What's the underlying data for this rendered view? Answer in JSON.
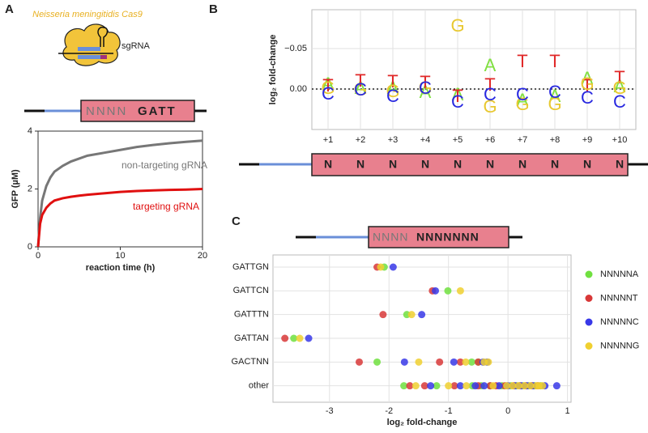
{
  "figure": {
    "panel_labels": [
      "A",
      "B",
      "C"
    ],
    "cas9_title": "Neisseria meningitidis Cas9",
    "sgrna_label": "sgRNA",
    "seq_a": {
      "variable": "NNNN",
      "fixed": "GATT"
    },
    "seq_b": [
      "N",
      "N",
      "N",
      "N",
      "N",
      "N",
      "N",
      "N",
      "N",
      "N"
    ],
    "seq_c": {
      "variable": "NNNN",
      "fixed": "NNNNNNN"
    }
  },
  "chart_data": [
    {
      "type": "line",
      "xlabel": "reaction time (h)",
      "ylabel": "GFP (µM)",
      "x": [
        0,
        0.25,
        0.5,
        1,
        1.5,
        2,
        3,
        4,
        5,
        6,
        8,
        10,
        12,
        14,
        16,
        18,
        20
      ],
      "series": [
        {
          "name": "non-targeting gRNA",
          "color": "#777777",
          "values": [
            0,
            1.0,
            1.6,
            2.1,
            2.4,
            2.6,
            2.8,
            2.95,
            3.05,
            3.15,
            3.25,
            3.35,
            3.45,
            3.52,
            3.58,
            3.63,
            3.67
          ]
        },
        {
          "name": "targeting gRNA",
          "color": "#e01010",
          "values": [
            0,
            0.8,
            1.1,
            1.35,
            1.5,
            1.6,
            1.68,
            1.73,
            1.77,
            1.8,
            1.85,
            1.9,
            1.93,
            1.95,
            1.97,
            1.98,
            2.0
          ]
        }
      ],
      "xlim": [
        0,
        20
      ],
      "ylim": [
        0,
        4
      ],
      "xticks": [
        0,
        10,
        20
      ],
      "yticks": [
        0,
        2,
        4
      ]
    },
    {
      "type": "logo",
      "ylabel": "log₂ fold-change",
      "categories": [
        "+1",
        "+2",
        "+3",
        "+4",
        "+5",
        "+6",
        "+7",
        "+8",
        "+9",
        "+10"
      ],
      "series": [
        {
          "name": "A",
          "color": "#80e040",
          "values": [
            -0.005,
            0,
            0,
            0.005,
            0.008,
            -0.028,
            0.015,
            0.01,
            -0.012,
            -0.002
          ]
        },
        {
          "name": "T",
          "color": "#e02828",
          "values": [
            -0.003,
            -0.009,
            -0.008,
            -0.007,
            0.01,
            -0.004,
            -0.033,
            -0.033,
            -0.003,
            -0.013
          ]
        },
        {
          "name": "G",
          "color": "#e8c830",
          "values": [
            0,
            0.002,
            0.004,
            0,
            -0.077,
            0.023,
            0.02,
            0.02,
            -0.005,
            0
          ]
        },
        {
          "name": "C",
          "color": "#2828e0",
          "values": [
            0.007,
            0.002,
            0.01,
            0,
            0.017,
            0.008,
            0.008,
            0.005,
            0.012,
            0.017
          ]
        }
      ],
      "ylim": [
        -0.098,
        0.05
      ],
      "inverted": true,
      "yticks": [
        {
          "value": -0.05,
          "label": "−0.05"
        },
        {
          "value": 0,
          "label": "0.00"
        }
      ],
      "reference_line": 0,
      "grid": true
    },
    {
      "type": "strip",
      "xlabel": "log₂ fold-change",
      "categories": [
        "GATTGN",
        "GATTCN",
        "GATTTN",
        "GATTAN",
        "GACTNN",
        "other"
      ],
      "series": [
        {
          "name": "NNNNNA",
          "color": "#70e040",
          "values": [
            [
              -2.08
            ],
            [
              -1.01
            ],
            [
              -1.7
            ],
            [
              -3.6
            ],
            [
              -2.2,
              -0.61,
              -0.5
            ],
            [
              -1.75,
              -1.2,
              -0.6,
              -0.3,
              -0.1,
              0.05,
              0.15,
              0.25,
              0.35,
              0.45,
              0.55,
              -0.45
            ]
          ]
        },
        {
          "name": "NNNNNT",
          "color": "#d83838",
          "values": [
            [
              -2.2
            ],
            [
              -1.27
            ],
            [
              -2.1
            ],
            [
              -3.75
            ],
            [
              -2.5,
              -1.15,
              -0.8,
              -0.5
            ],
            [
              -1.65,
              -1.4,
              -0.9,
              -0.5,
              -0.2,
              -0.05,
              0.1,
              0.2,
              0.3,
              0.4,
              0.5,
              -0.3
            ]
          ]
        },
        {
          "name": "NNNNNC",
          "color": "#3838e8",
          "values": [
            [
              -1.93
            ],
            [
              -1.22
            ],
            [
              -1.45
            ],
            [
              -3.35
            ],
            [
              -1.74,
              -0.91,
              -0.42,
              -0.35
            ],
            [
              -1.3,
              -0.8,
              -0.4,
              -0.15,
              0,
              0.12,
              0.22,
              0.32,
              0.42,
              0.62,
              0.82,
              -0.55
            ]
          ]
        },
        {
          "name": "NNNNNG",
          "color": "#f0d030",
          "values": [
            [
              -2.14
            ],
            [
              -0.8
            ],
            [
              -1.62
            ],
            [
              -3.5
            ],
            [
              -1.5,
              -0.71,
              -0.33,
              -0.4
            ],
            [
              -1.55,
              -1.0,
              -0.7,
              -0.25,
              -0.02,
              0.08,
              0.18,
              0.28,
              0.38,
              0.48,
              0.58,
              0.52
            ]
          ]
        }
      ],
      "xlim": [
        -3.95,
        1.06
      ],
      "xticks": [
        -3,
        -2,
        -1,
        0,
        1
      ],
      "grid": true,
      "legend": "right"
    }
  ]
}
